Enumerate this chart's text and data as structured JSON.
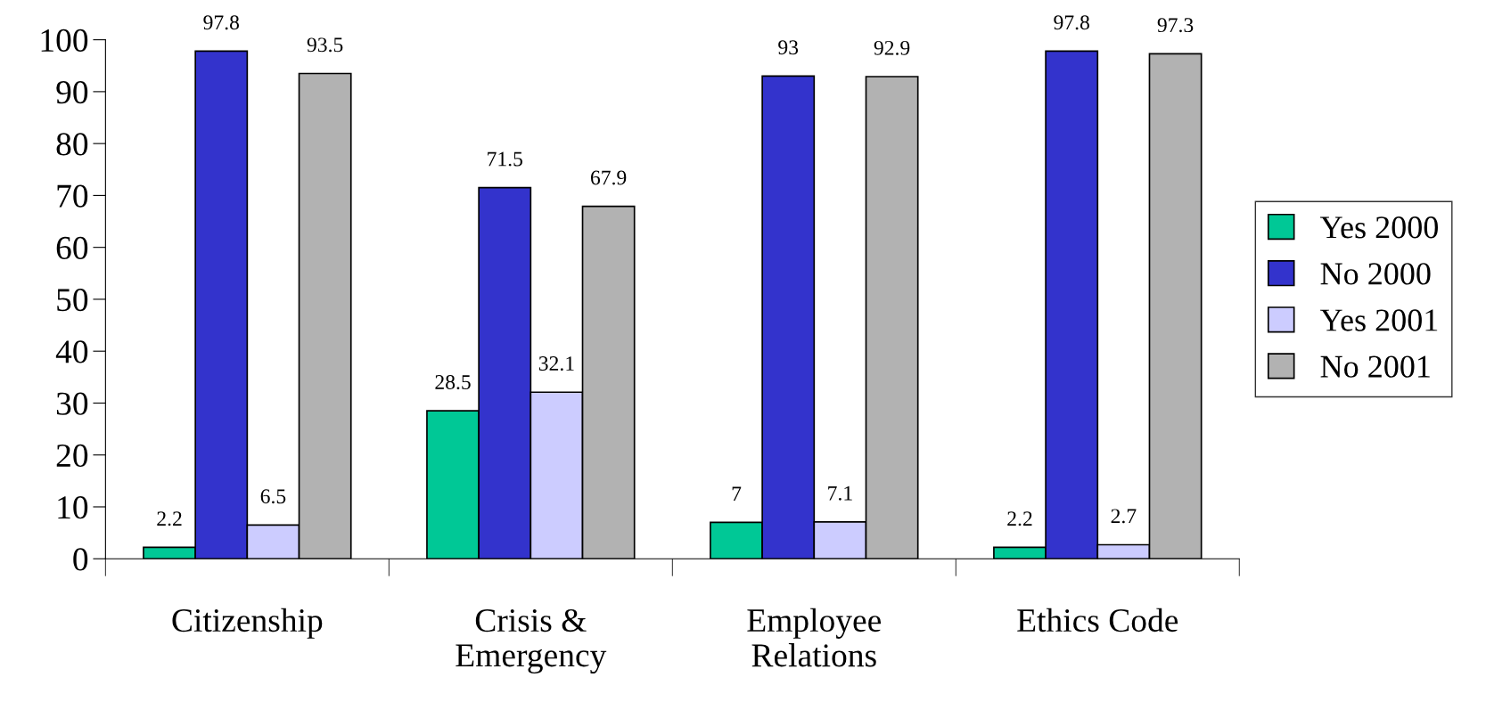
{
  "chart_data": {
    "type": "bar",
    "categories": [
      "Citizenship",
      "Crisis &\nEmergency",
      "Employee\nRelations",
      "Ethics Code"
    ],
    "series": [
      {
        "name": "Yes 2000",
        "color": "#00c896",
        "values": [
          2.2,
          28.5,
          7,
          2.2
        ]
      },
      {
        "name": "No 2000",
        "color": "#3333cc",
        "values": [
          97.8,
          71.5,
          93,
          97.8
        ]
      },
      {
        "name": "Yes 2001",
        "color": "#ccccff",
        "values": [
          6.5,
          32.1,
          7.1,
          2.7
        ]
      },
      {
        "name": "No 2001",
        "color": "#b2b2b2",
        "values": [
          93.5,
          67.9,
          92.9,
          97.3
        ]
      }
    ],
    "ylim": [
      0,
      100
    ],
    "yticks": [
      0,
      10,
      20,
      30,
      40,
      50,
      60,
      70,
      80,
      90,
      100
    ],
    "grid": false,
    "legend": "right",
    "data_labels": true
  }
}
